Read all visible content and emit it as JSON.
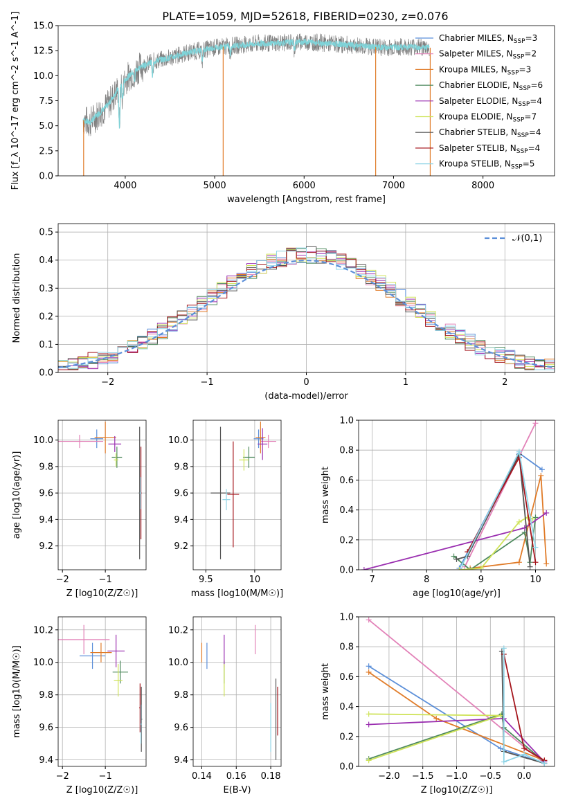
{
  "figure_title": "PLATE=1059, MJD=52618, FIBERID=0230, z=0.076",
  "model_styles": [
    {
      "name": "Chabrier MILES",
      "nssp": "3",
      "color": "#5b8fd9"
    },
    {
      "name": "Salpeter MILES",
      "nssp": "2",
      "color": "#e282b8"
    },
    {
      "name": "Kroupa MILES",
      "nssp": "3",
      "color": "#e07b28"
    },
    {
      "name": "Chabrier ELODIE",
      "nssp": "6",
      "color": "#4f8a5e"
    },
    {
      "name": "Salpeter ELODIE",
      "nssp": "4",
      "color": "#9a2fb0"
    },
    {
      "name": "Kroupa ELODIE",
      "nssp": "7",
      "color": "#cfe35a"
    },
    {
      "name": "Chabrier STELIB",
      "nssp": "4",
      "color": "#555555"
    },
    {
      "name": "Salpeter STELIB",
      "nssp": "4",
      "color": "#a5161d"
    },
    {
      "name": "Kroupa STELIB",
      "nssp": "5",
      "color": "#8fd4e6"
    }
  ],
  "chart_data": [
    {
      "id": "spectrum",
      "type": "line",
      "xlabel": "wavelength [Angstrom, rest frame]",
      "ylabel": "Flux [f_λ 10^-17 erg cm^-2 s^-1 A^-1]",
      "xlim": [
        3250,
        8800
      ],
      "ylim": [
        0,
        15
      ],
      "xticks": [
        4000,
        5000,
        6000,
        7000,
        8000
      ],
      "yticks": [
        0.0,
        2.5,
        5.0,
        7.5,
        10.0,
        12.5,
        15.0
      ],
      "grid": false,
      "legend": "right",
      "data_color": "#808080",
      "model_color": "#7fd3d8",
      "continuum": {
        "x": [
          3530,
          3600,
          3700,
          3800,
          3900,
          4000,
          4100,
          4200,
          4300,
          4500,
          4700,
          5000,
          5200,
          5500,
          5800,
          6000,
          6300,
          6600,
          6900,
          7200,
          7400
        ],
        "y": [
          5.6,
          5.3,
          6.2,
          7.0,
          8.4,
          9.6,
          10.5,
          11.0,
          11.4,
          11.8,
          12.3,
          12.8,
          13.0,
          13.2,
          13.3,
          13.4,
          13.2,
          13.0,
          12.8,
          12.9,
          12.8
        ]
      },
      "absorption": [
        {
          "x": 3935,
          "y": 4.6
        },
        {
          "x": 3970,
          "y": 7.3
        },
        {
          "x": 4102,
          "y": 9.2
        },
        {
          "x": 4305,
          "y": 9.8
        },
        {
          "x": 4862,
          "y": 11.4
        },
        {
          "x": 5176,
          "y": 12.0
        },
        {
          "x": 5892,
          "y": 12.5
        },
        {
          "x": 6563,
          "y": 12.7
        }
      ],
      "spikes": [
        {
          "x": 3535,
          "y": 0
        },
        {
          "x": 5095,
          "y": 0
        },
        {
          "x": 6800,
          "y": 0
        },
        {
          "x": 7410,
          "y": 0
        }
      ]
    },
    {
      "id": "residuals",
      "type": "bar",
      "xlabel": "(data-model)/error",
      "ylabel": "Normed distribution",
      "xlim": [
        -2.5,
        2.5
      ],
      "ylim": [
        0,
        0.53
      ],
      "xticks": [
        -2,
        -1,
        0,
        1,
        2
      ],
      "yticks": [
        0.0,
        0.1,
        0.2,
        0.3,
        0.4,
        0.5
      ],
      "grid": true,
      "legend": "top-right",
      "gaussian_label": "𝒩(0,1)",
      "gaussian_color": "#5b8fd9",
      "bin_width": 0.1,
      "bin_start": -2.5
    },
    {
      "id": "age_vs_Z",
      "type": "scatter",
      "xlabel": "Z [log10(Z/Z☉)]",
      "ylabel": "age  [log10(age/yr)]",
      "xlim": [
        -2.1,
        -0.05
      ],
      "ylim": [
        9.02,
        10.15
      ],
      "xticks": [
        -2,
        -1
      ],
      "yticks": [
        9.2,
        9.4,
        9.6,
        9.8,
        10.0
      ],
      "grid": true,
      "points": [
        {
          "model": 0,
          "x": -1.2,
          "y": 10.01,
          "xerr": 0.15,
          "yerr": 0.07
        },
        {
          "model": 1,
          "x": -1.6,
          "y": 9.99,
          "xerr": 0.55,
          "yerr": 0.05
        },
        {
          "model": 2,
          "x": -1.0,
          "y": 10.02,
          "xerr": 0.25,
          "yerr": 0.12
        },
        {
          "model": 3,
          "x": -0.73,
          "y": 9.87,
          "xerr": 0.12,
          "yerr": 0.08
        },
        {
          "model": 4,
          "x": -0.78,
          "y": 9.97,
          "xerr": 0.15,
          "yerr": 0.06
        },
        {
          "model": 5,
          "x": -0.75,
          "y": 9.85,
          "xerr": 0.05,
          "yerr": 0.05
        },
        {
          "model": 6,
          "x": -0.2,
          "y": 9.6,
          "xerr": 0.02,
          "yerr": 0.5
        },
        {
          "model": 7,
          "x": -0.17,
          "y": 9.6,
          "xerr": 0.02,
          "yerr": 0.35
        },
        {
          "model": 8,
          "x": -0.18,
          "y": 9.6,
          "xerr": 0.02,
          "yerr": 0.12
        }
      ]
    },
    {
      "id": "age_vs_mass",
      "type": "scatter",
      "xlabel": "mass [log10(M/M☉)]",
      "ylabel": "",
      "xlim": [
        9.37,
        10.27
      ],
      "ylim": [
        9.02,
        10.15
      ],
      "xticks": [
        9.5,
        10.0
      ],
      "yticks": [
        9.2,
        9.4,
        9.6,
        9.8,
        10.0
      ],
      "grid": true,
      "points": [
        {
          "model": 0,
          "x": 10.04,
          "y": 10.01,
          "xerr": 0.05,
          "yerr": 0.07
        },
        {
          "model": 1,
          "x": 10.14,
          "y": 9.99,
          "xerr": 0.08,
          "yerr": 0.05
        },
        {
          "model": 2,
          "x": 10.06,
          "y": 10.02,
          "xerr": 0.05,
          "yerr": 0.12
        },
        {
          "model": 3,
          "x": 9.94,
          "y": 9.87,
          "xerr": 0.06,
          "yerr": 0.08
        },
        {
          "model": 4,
          "x": 10.08,
          "y": 9.97,
          "xerr": 0.05,
          "yerr": 0.12
        },
        {
          "model": 5,
          "x": 9.89,
          "y": 9.85,
          "xerr": 0.05,
          "yerr": 0.08
        },
        {
          "model": 6,
          "x": 9.65,
          "y": 9.6,
          "xerr": 0.1,
          "yerr": 0.5
        },
        {
          "model": 7,
          "x": 9.78,
          "y": 9.59,
          "xerr": 0.06,
          "yerr": 0.4
        },
        {
          "model": 8,
          "x": 9.71,
          "y": 9.55,
          "xerr": 0.04,
          "yerr": 0.08
        }
      ]
    },
    {
      "id": "massweight_vs_age",
      "type": "line",
      "xlabel": "age  [log10(age/yr)]",
      "ylabel": "mass weight",
      "xlim": [
        6.75,
        10.35
      ],
      "ylim": [
        0,
        1.0
      ],
      "xticks": [
        7,
        8,
        9,
        10
      ],
      "yticks": [
        0.0,
        0.2,
        0.4,
        0.6,
        0.8,
        1.0
      ],
      "grid": true,
      "series": [
        {
          "model": 0,
          "x": [
            8.6,
            9.7,
            10.12
          ],
          "y": [
            0.01,
            0.78,
            0.67
          ]
        },
        {
          "model": 1,
          "x": [
            8.7,
            10.0
          ],
          "y": [
            0.02,
            0.98
          ]
        },
        {
          "model": 2,
          "x": [
            8.8,
            9.7,
            10.1,
            10.2
          ],
          "y": [
            0.01,
            0.05,
            0.63,
            0.04
          ]
        },
        {
          "model": 3,
          "x": [
            8.5,
            8.8,
            9.8,
            9.9,
            10.0
          ],
          "y": [
            0.09,
            0.0,
            0.25,
            0.05,
            0.35
          ]
        },
        {
          "model": 4,
          "x": [
            6.85,
            9.8,
            10.2
          ],
          "y": [
            0.0,
            0.28,
            0.38
          ]
        },
        {
          "model": 5,
          "x": [
            8.6,
            9.0,
            9.7,
            9.85,
            9.95
          ],
          "y": [
            0.0,
            0.01,
            0.32,
            0.35,
            0.34
          ]
        },
        {
          "model": 6,
          "x": [
            8.55,
            8.75,
            9.7,
            9.9
          ],
          "y": [
            0.07,
            0.09,
            0.77,
            0.02
          ]
        },
        {
          "model": 7,
          "x": [
            8.75,
            9.7,
            10.0
          ],
          "y": [
            0.12,
            0.75,
            0.05
          ]
        },
        {
          "model": 8,
          "x": [
            8.65,
            9.7,
            10.0
          ],
          "y": [
            0.03,
            0.79,
            0.15
          ]
        }
      ]
    },
    {
      "id": "mass_vs_Z",
      "type": "scatter",
      "xlabel": "Z [log10(Z/Z☉)]",
      "ylabel": "mass [log10(M/M☉)]",
      "xlim": [
        -2.1,
        -0.05
      ],
      "ylim": [
        9.36,
        10.28
      ],
      "xticks": [
        -2,
        -1
      ],
      "yticks": [
        9.4,
        9.6,
        9.8,
        10.0,
        10.2
      ],
      "grid": true,
      "points": [
        {
          "model": 0,
          "x": -1.3,
          "y": 10.04,
          "xerr": 0.3,
          "yerr": 0.08
        },
        {
          "model": 1,
          "x": -1.5,
          "y": 10.14,
          "xerr": 0.6,
          "yerr": 0.09
        },
        {
          "model": 2,
          "x": -1.1,
          "y": 10.06,
          "xerr": 0.25,
          "yerr": 0.06
        },
        {
          "model": 3,
          "x": -0.65,
          "y": 9.94,
          "xerr": 0.18,
          "yerr": 0.07
        },
        {
          "model": 4,
          "x": -0.75,
          "y": 10.07,
          "xerr": 0.2,
          "yerr": 0.1
        },
        {
          "model": 5,
          "x": -0.7,
          "y": 9.89,
          "xerr": 0.1,
          "yerr": 0.1
        },
        {
          "model": 6,
          "x": -0.16,
          "y": 9.65,
          "xerr": 0.02,
          "yerr": 0.2
        },
        {
          "model": 7,
          "x": -0.19,
          "y": 9.72,
          "xerr": 0.02,
          "yerr": 0.15
        },
        {
          "model": 8,
          "x": -0.17,
          "y": 9.62,
          "xerr": 0.02,
          "yerr": 0.12
        }
      ]
    },
    {
      "id": "mass_vs_EBV",
      "type": "scatter",
      "xlabel": "E(B-V)",
      "ylabel": "",
      "xlim": [
        0.135,
        0.186
      ],
      "ylim": [
        9.36,
        10.28
      ],
      "xticks": [
        0.14,
        0.16,
        0.18
      ],
      "yticks": [
        9.4,
        9.6,
        9.8,
        10.0,
        10.2
      ],
      "grid": true,
      "points": [
        {
          "model": 0,
          "x": 0.143,
          "y": 10.04,
          "xerr": 0,
          "yerr": 0.08
        },
        {
          "model": 1,
          "x": 0.171,
          "y": 10.14,
          "xerr": 0,
          "yerr": 0.09
        },
        {
          "model": 2,
          "x": 0.14,
          "y": 10.06,
          "xerr": 0,
          "yerr": 0.06
        },
        {
          "model": 3,
          "x": 0.153,
          "y": 9.94,
          "xerr": 0,
          "yerr": 0.07
        },
        {
          "model": 4,
          "x": 0.153,
          "y": 10.07,
          "xerr": 0,
          "yerr": 0.1
        },
        {
          "model": 5,
          "x": 0.153,
          "y": 9.89,
          "xerr": 0,
          "yerr": 0.1
        },
        {
          "model": 6,
          "x": 0.183,
          "y": 9.65,
          "xerr": 0,
          "yerr": 0.25
        },
        {
          "model": 7,
          "x": 0.184,
          "y": 9.7,
          "xerr": 0,
          "yerr": 0.15
        },
        {
          "model": 8,
          "x": 0.18,
          "y": 9.6,
          "xerr": 0,
          "yerr": 0.15
        }
      ]
    },
    {
      "id": "massweight_vs_Z",
      "type": "line",
      "xlabel": "Z [log10(Z/Z☉)]",
      "ylabel": "mass weight",
      "xlim": [
        -2.45,
        0.45
      ],
      "ylim": [
        0,
        1.0
      ],
      "xticks": [
        -2.0,
        -1.5,
        -1.0,
        -0.5,
        0.0
      ],
      "yticks": [
        0.0,
        0.2,
        0.4,
        0.6,
        0.8,
        1.0
      ],
      "grid": true,
      "series": [
        {
          "model": 0,
          "x": [
            -2.3,
            -0.35,
            0.3
          ],
          "y": [
            0.67,
            0.12,
            0.02
          ]
        },
        {
          "model": 1,
          "x": [
            -2.3,
            0.3
          ],
          "y": [
            0.98,
            0.02
          ]
        },
        {
          "model": 2,
          "x": [
            -2.3,
            -1.3,
            0.3
          ],
          "y": [
            0.63,
            0.32,
            0.04
          ]
        },
        {
          "model": 3,
          "x": [
            -2.3,
            -0.33,
            -0.3,
            0.3
          ],
          "y": [
            0.05,
            0.35,
            0.26,
            0.03
          ]
        },
        {
          "model": 4,
          "x": [
            -2.3,
            -0.3,
            0.3
          ],
          "y": [
            0.28,
            0.32,
            0.03
          ]
        },
        {
          "model": 5,
          "x": [
            -2.3,
            -0.35,
            -2.3
          ],
          "y": [
            0.04,
            0.34,
            0.35
          ]
        },
        {
          "model": 6,
          "x": [
            -0.33,
            -0.3,
            0.3
          ],
          "y": [
            0.77,
            0.1,
            0.02
          ]
        },
        {
          "model": 7,
          "x": [
            -0.3,
            0.0,
            0.3
          ],
          "y": [
            0.75,
            0.12,
            0.04
          ]
        },
        {
          "model": 8,
          "x": [
            -0.3,
            -0.3,
            0.0,
            0.3
          ],
          "y": [
            0.79,
            0.03,
            0.08,
            0.02
          ]
        }
      ]
    }
  ]
}
